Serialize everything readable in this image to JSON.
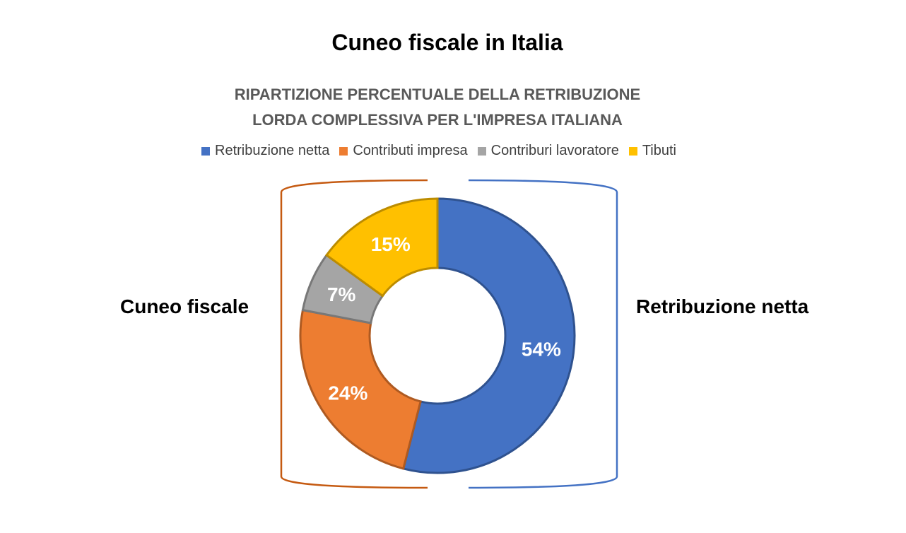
{
  "chart_data": {
    "type": "pie",
    "title": "RIPARTIZIONE PERCENTUALE DELLA RETRIBUZIONE LORDA COMPLESSIVA PER L'IMPRESA ITALIANA",
    "title_lines": [
      "RIPARTIZIONE PERCENTUALE DELLA RETRIBUZIONE",
      "LORDA COMPLESSIVA PER L'IMPRESA ITALIANA"
    ],
    "donut": true,
    "legend_position": "top",
    "categories": [
      "Retribuzione netta",
      "Contributi impresa",
      "Contriburi lavoratore",
      "Tibuti"
    ],
    "values": [
      54,
      24,
      7,
      15
    ],
    "data_labels": [
      "54%",
      "24%",
      "7%",
      "15%"
    ],
    "colors": [
      "#4472C4",
      "#ED7D31",
      "#A5A5A5",
      "#FFC000"
    ],
    "border_colors": [
      "#2F528F",
      "#AE5A21",
      "#787878",
      "#BC8C00"
    ]
  },
  "header": {
    "title": "Cuneo fiscale in Italia"
  },
  "annotations": {
    "left": {
      "label": "Cuneo fiscale",
      "bracket_color": "#C55A11"
    },
    "right": {
      "label": "Retribuzione netta",
      "bracket_color": "#4472C4"
    }
  }
}
